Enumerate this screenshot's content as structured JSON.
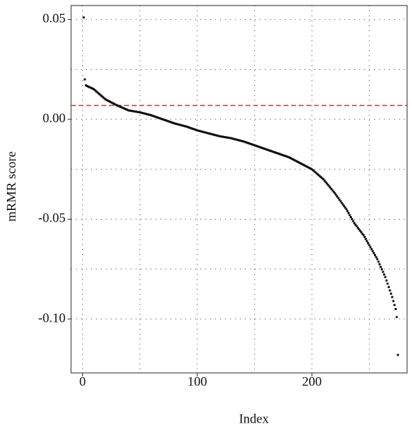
{
  "chart_data": {
    "type": "scatter",
    "xlabel": "Index",
    "ylabel": "mRMR score",
    "xlim": [
      -10,
      283
    ],
    "ylim": [
      -0.127,
      0.057
    ],
    "xticks": [
      0,
      100,
      200
    ],
    "yticks": [
      0.05,
      {
        "value": 0,
        "label": "0.00"
      },
      -0.05,
      {
        "value": -0.1,
        "label": "-0.10"
      }
    ],
    "xgrid": [
      0,
      50,
      100,
      150,
      200,
      250
    ],
    "ygrid": [
      0.05,
      0.025,
      0,
      -0.025,
      -0.05,
      -0.075,
      -0.1
    ],
    "hline": {
      "value": 0.007,
      "color": "#c0392b"
    },
    "color": "#111111",
    "x": [
      1,
      2,
      3,
      4,
      5,
      6,
      7,
      8,
      9,
      10,
      11,
      12,
      13,
      14,
      15,
      16,
      17,
      18,
      19,
      20,
      21,
      22,
      23,
      24,
      25,
      26,
      27,
      28,
      29,
      30,
      31,
      32,
      33,
      34,
      35,
      36,
      37,
      38,
      39,
      40,
      41,
      42,
      43,
      44,
      45,
      46,
      47,
      48,
      49,
      50,
      51,
      52,
      53,
      54,
      55,
      56,
      57,
      58,
      59,
      60,
      61,
      62,
      63,
      64,
      65,
      66,
      67,
      68,
      69,
      70,
      71,
      72,
      73,
      74,
      75,
      76,
      77,
      78,
      79,
      80,
      81,
      82,
      83,
      84,
      85,
      86,
      87,
      88,
      89,
      90,
      91,
      92,
      93,
      94,
      95,
      96,
      97,
      98,
      99,
      100,
      101,
      102,
      103,
      104,
      105,
      106,
      107,
      108,
      109,
      110,
      111,
      112,
      113,
      114,
      115,
      116,
      117,
      118,
      119,
      120,
      121,
      122,
      123,
      124,
      125,
      126,
      127,
      128,
      129,
      130,
      131,
      132,
      133,
      134,
      135,
      136,
      137,
      138,
      139,
      140,
      141,
      142,
      143,
      144,
      145,
      146,
      147,
      148,
      149,
      150,
      151,
      152,
      153,
      154,
      155,
      156,
      157,
      158,
      159,
      160,
      161,
      162,
      163,
      164,
      165,
      166,
      167,
      168,
      169,
      170,
      171,
      172,
      173,
      174,
      175,
      176,
      177,
      178,
      179,
      180,
      181,
      182,
      183,
      184,
      185,
      186,
      187,
      188,
      189,
      190,
      191,
      192,
      193,
      194,
      195,
      196,
      197,
      198,
      199,
      200,
      201,
      202,
      203,
      204,
      205,
      206,
      207,
      208,
      209,
      210,
      211,
      212,
      213,
      214,
      215,
      216,
      217,
      218,
      219,
      220,
      221,
      222,
      223,
      224,
      225,
      226,
      227,
      228,
      229,
      230,
      231,
      232,
      233,
      234,
      235,
      236,
      237,
      238,
      239,
      240,
      241,
      242,
      243,
      244,
      245,
      246,
      247,
      248,
      249,
      250,
      251,
      252,
      253,
      254,
      255,
      256,
      257,
      258,
      259,
      260,
      261,
      262,
      263,
      264,
      265,
      266,
      267,
      268,
      269,
      270,
      271,
      272,
      273,
      274,
      275
    ],
    "values": [
      0.051,
      0.02,
      0.017,
      0.0167,
      0.0164,
      0.0161,
      0.0159,
      0.0156,
      0.0153,
      0.015,
      0.0145,
      0.014,
      0.0135,
      0.013,
      0.0125,
      0.012,
      0.0115,
      0.011,
      0.0105,
      0.01,
      0.0097,
      0.0094,
      0.0091,
      0.0088,
      0.0085,
      0.0082,
      0.0079,
      0.0076,
      0.0073,
      0.007,
      0.0068,
      0.0065,
      0.0063,
      0.006,
      0.0058,
      0.0055,
      0.0053,
      0.005,
      0.0048,
      0.0045,
      0.0044,
      0.0043,
      0.0042,
      0.0041,
      0.004,
      0.0039,
      0.0038,
      0.0037,
      0.0036,
      0.0035,
      0.0034,
      0.0032,
      0.0031,
      0.0029,
      0.0028,
      0.0026,
      0.0025,
      0.0023,
      0.0022,
      0.002,
      0.0018,
      0.0016,
      0.0014,
      0.0012,
      0.001,
      0.0008,
      0.0006,
      0.0004,
      0.0002,
      0,
      -0.0002,
      -0.0004,
      -0.0006,
      -0.0008,
      -0.001,
      -0.0012,
      -0.0014,
      -0.0016,
      -0.0018,
      -0.002,
      -0.0022,
      -0.0023,
      -0.0025,
      -0.0026,
      -0.0028,
      -0.0029,
      -0.0031,
      -0.0032,
      -0.0034,
      -0.0035,
      -0.0037,
      -0.0039,
      -0.0041,
      -0.0043,
      -0.0045,
      -0.0047,
      -0.0049,
      -0.0051,
      -0.0053,
      -0.0055,
      -0.0057,
      -0.0058,
      -0.006,
      -0.0061,
      -0.0063,
      -0.0064,
      -0.0066,
      -0.0067,
      -0.0069,
      -0.007,
      -0.0072,
      -0.0073,
      -0.0075,
      -0.0076,
      -0.0078,
      -0.0079,
      -0.0081,
      -0.0082,
      -0.0084,
      -0.0085,
      -0.0086,
      -0.0087,
      -0.0088,
      -0.0089,
      -0.009,
      -0.0091,
      -0.0092,
      -0.0093,
      -0.0094,
      -0.0095,
      -0.0097,
      -0.0098,
      -0.01,
      -0.0101,
      -0.0103,
      -0.0104,
      -0.0106,
      -0.0107,
      -0.0109,
      -0.011,
      -0.0112,
      -0.0114,
      -0.0116,
      -0.0118,
      -0.012,
      -0.0122,
      -0.0124,
      -0.0126,
      -0.0128,
      -0.013,
      -0.0132,
      -0.0134,
      -0.0136,
      -0.0138,
      -0.014,
      -0.0142,
      -0.0144,
      -0.0146,
      -0.0148,
      -0.015,
      -0.0152,
      -0.0154,
      -0.0156,
      -0.0158,
      -0.016,
      -0.0162,
      -0.0164,
      -0.0166,
      -0.0168,
      -0.017,
      -0.0172,
      -0.0174,
      -0.0176,
      -0.0178,
      -0.018,
      -0.0182,
      -0.0184,
      -0.0186,
      -0.0188,
      -0.019,
      -0.0193,
      -0.0196,
      -0.0199,
      -0.0202,
      -0.0205,
      -0.0208,
      -0.0211,
      -0.0214,
      -0.0217,
      -0.022,
      -0.0223,
      -0.0226,
      -0.0229,
      -0.0232,
      -0.0235,
      -0.0238,
      -0.0241,
      -0.0244,
      -0.0247,
      -0.025,
      -0.0255,
      -0.026,
      -0.0265,
      -0.027,
      -0.0275,
      -0.028,
      -0.0285,
      -0.029,
      -0.0295,
      -0.03,
      -0.0307,
      -0.0314,
      -0.0321,
      -0.0328,
      -0.0335,
      -0.0342,
      -0.0349,
      -0.0356,
      -0.0363,
      -0.037,
      -0.0378,
      -0.0386,
      -0.0394,
      -0.0402,
      -0.041,
      -0.0418,
      -0.0426,
      -0.0434,
      -0.0442,
      -0.045,
      -0.046,
      -0.047,
      -0.048,
      -0.049,
      -0.05,
      -0.051,
      -0.052,
      -0.0528,
      -0.0535,
      -0.0543,
      -0.055,
      -0.0558,
      -0.0565,
      -0.0573,
      -0.058,
      -0.059,
      -0.06,
      -0.061,
      -0.062,
      -0.063,
      -0.064,
      -0.065,
      -0.066,
      -0.067,
      -0.068,
      -0.069,
      -0.07,
      -0.0713,
      -0.0726,
      -0.0739,
      -0.0751,
      -0.0764,
      -0.0777,
      -0.079,
      -0.0807,
      -0.0823,
      -0.084,
      -0.0857,
      -0.0873,
      -0.089,
      -0.091,
      -0.093,
      -0.095,
      -0.099,
      -0.118
    ]
  }
}
